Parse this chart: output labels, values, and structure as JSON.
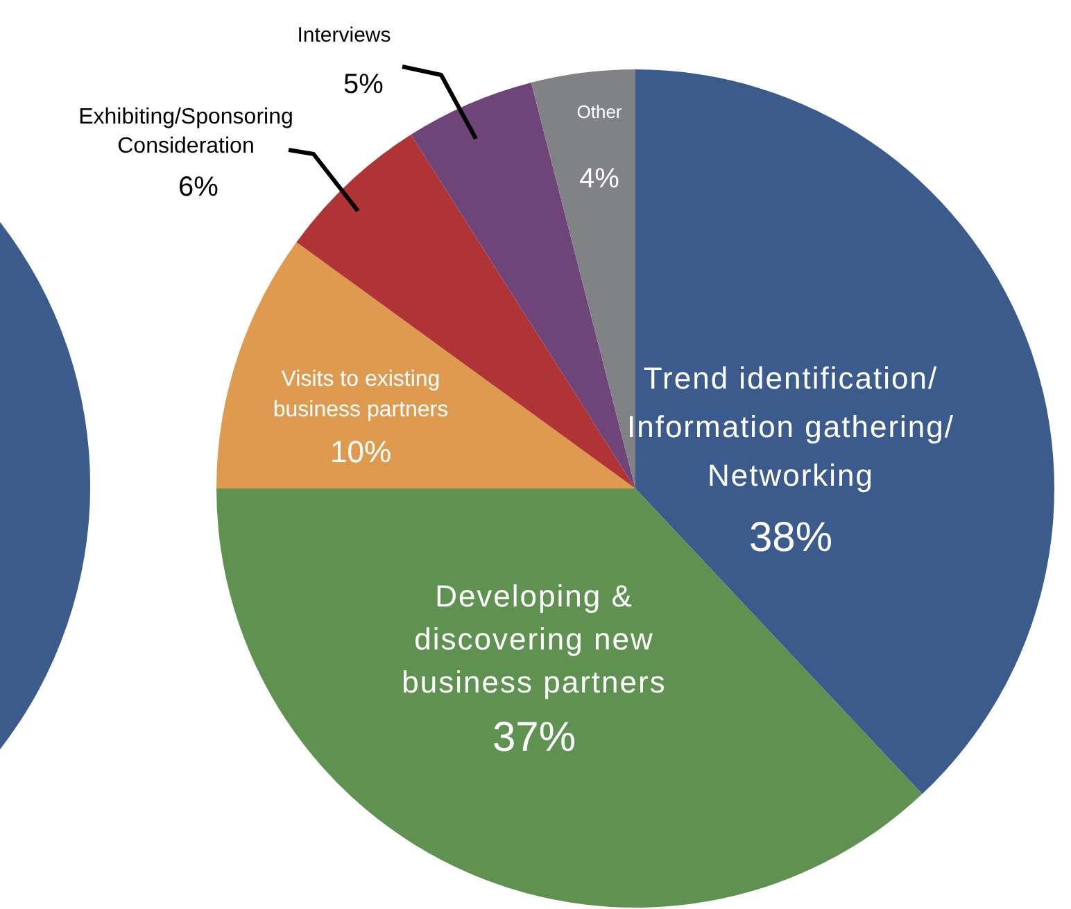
{
  "chart_data": {
    "type": "pie",
    "categories": [
      "Trend identification/ Information gathering/ Networking",
      "Developing & discovering new business partners",
      "Visits to existing business partners",
      "Exhibiting/Sponsoring Consideration",
      "Interviews",
      "Other"
    ],
    "values": [
      38,
      37,
      10,
      6,
      5,
      4
    ],
    "colors": [
      "#3b5b8c",
      "#5f9150",
      "#de9a4e",
      "#b03436",
      "#6e4479",
      "#808285"
    ],
    "value_labels": [
      "38%",
      "37%",
      "10%",
      "6%",
      "5%",
      "4%"
    ]
  }
}
